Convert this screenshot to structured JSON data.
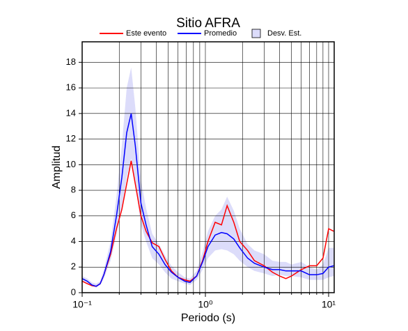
{
  "chart_data": {
    "type": "line",
    "title": "Sitio AFRA",
    "xlabel": "Periodo (s)",
    "ylabel": "Amplitud",
    "xscale": "log",
    "grid": true,
    "legend": "top",
    "xlim": [
      0.1,
      11.1
    ],
    "ylim": [
      0,
      19.6
    ],
    "xticks": [
      {
        "value": 0.1,
        "label": "10⁻¹"
      },
      {
        "value": 1,
        "label": "10⁰"
      },
      {
        "value": 10,
        "label": "10¹"
      }
    ],
    "xminorticks": [
      0.2,
      0.3,
      0.4,
      0.5,
      0.6,
      0.7,
      0.8,
      0.9,
      2,
      3,
      4,
      5,
      6,
      7,
      8,
      9
    ],
    "yticks": [
      0,
      2,
      4,
      6,
      8,
      10,
      12,
      14,
      16,
      18
    ],
    "x": [
      0.1,
      0.11,
      0.12,
      0.13,
      0.14,
      0.15,
      0.17,
      0.19,
      0.21,
      0.23,
      0.25,
      0.27,
      0.3,
      0.33,
      0.37,
      0.42,
      0.47,
      0.53,
      0.6,
      0.68,
      0.75,
      0.85,
      0.95,
      1.05,
      1.2,
      1.35,
      1.5,
      1.7,
      1.9,
      2.2,
      2.5,
      3,
      3.5,
      4,
      4.5,
      5,
      6,
      7,
      8,
      9,
      10,
      11
    ],
    "series": [
      {
        "name": "Este evento",
        "color": "#ff0000",
        "values": [
          0.9,
          0.7,
          0.55,
          0.5,
          0.7,
          1.4,
          3.0,
          5.0,
          6.5,
          8.5,
          10.3,
          8.5,
          6.0,
          4.8,
          3.9,
          3.6,
          2.6,
          1.7,
          1.2,
          1.0,
          0.9,
          1.3,
          2.5,
          4.0,
          5.5,
          5.3,
          6.8,
          5.5,
          4.0,
          3.3,
          2.5,
          2.1,
          1.6,
          1.3,
          1.1,
          1.3,
          1.8,
          2.1,
          2.1,
          2.7,
          5.0,
          4.8
        ]
      },
      {
        "name": "Promedio",
        "color": "#0000ff",
        "values": [
          1.1,
          0.9,
          0.6,
          0.5,
          0.7,
          1.4,
          3.2,
          6.0,
          9.0,
          12.5,
          14.0,
          11.5,
          7.0,
          5.3,
          3.6,
          3.0,
          2.2,
          1.6,
          1.2,
          0.9,
          0.8,
          1.3,
          2.4,
          3.6,
          4.5,
          4.7,
          4.6,
          4.2,
          3.5,
          2.7,
          2.3,
          2.0,
          1.8,
          1.8,
          1.7,
          1.7,
          1.7,
          1.4,
          1.4,
          1.5,
          2.0,
          2.1
        ]
      },
      {
        "name": "Desv. Est.",
        "color": "#dcdcfa",
        "band": true,
        "upper": [
          1.3,
          1.1,
          0.8,
          0.7,
          0.9,
          1.8,
          4.0,
          7.5,
          11.5,
          16.0,
          17.6,
          14.5,
          8.8,
          6.6,
          4.6,
          3.8,
          2.9,
          2.1,
          1.6,
          1.2,
          1.1,
          1.7,
          3.2,
          4.8,
          6.0,
          6.5,
          7.5,
          6.4,
          5.0,
          3.8,
          3.3,
          3.0,
          2.5,
          2.4,
          2.4,
          2.2,
          2.4,
          2.0,
          1.8,
          2.2,
          3.5,
          3.5
        ],
        "lower": [
          0.9,
          0.7,
          0.5,
          0.4,
          0.6,
          1.1,
          2.5,
          4.5,
          6.5,
          9.0,
          10.5,
          8.5,
          5.3,
          4.0,
          2.7,
          2.2,
          1.6,
          1.1,
          0.9,
          0.7,
          0.6,
          1.0,
          1.8,
          2.7,
          3.3,
          3.4,
          3.3,
          3.0,
          2.5,
          2.0,
          1.7,
          1.5,
          1.3,
          1.4,
          1.3,
          1.3,
          1.2,
          1.0,
          1.0,
          1.0,
          1.2,
          1.3
        ]
      }
    ]
  }
}
